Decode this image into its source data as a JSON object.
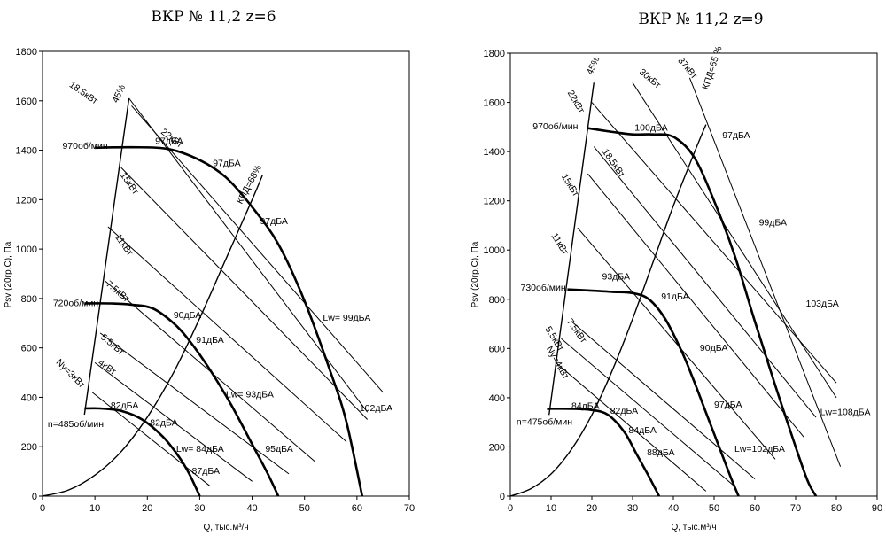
{
  "chart_data": [
    {
      "type": "line",
      "title": "ВКР № 11,2 z=6",
      "xlabel": "Q, тыс.м³/ч",
      "ylabel": "Psv (20гр.С), Па",
      "xlim": [
        0,
        70
      ],
      "ylim": [
        0,
        1800
      ],
      "xticks": [
        "0",
        "10",
        "20",
        "30",
        "40",
        "50",
        "60",
        "70"
      ],
      "yticks": [
        "0",
        "200",
        "400",
        "600",
        "800",
        "1000",
        "1200",
        "1400",
        "1600",
        "1800"
      ],
      "grid": false,
      "series": [
        {
          "name": "970об/мин",
          "kind": "pressure",
          "x": [
            10,
            17,
            24,
            30,
            35,
            40,
            45,
            50,
            55,
            58,
            61
          ],
          "y": [
            1410,
            1412,
            1405,
            1360,
            1290,
            1170,
            1020,
            790,
            500,
            300,
            0
          ]
        },
        {
          "name": "720об/мин",
          "kind": "pressure",
          "x": [
            8,
            13,
            17,
            21,
            25,
            28,
            32,
            36,
            40,
            43,
            45
          ],
          "y": [
            780,
            780,
            775,
            760,
            700,
            630,
            510,
            370,
            210,
            90,
            0
          ]
        },
        {
          "name": "n=485об/мин",
          "kind": "pressure",
          "x": [
            8,
            11,
            15,
            19,
            23,
            26,
            28,
            30
          ],
          "y": [
            355,
            355,
            345,
            310,
            240,
            160,
            90,
            0
          ]
        },
        {
          "name": "КПД=68%",
          "kind": "efficiency",
          "x": [
            0,
            5,
            10,
            15,
            20,
            25,
            30,
            35,
            40,
            42
          ],
          "y": [
            0,
            25,
            85,
            180,
            320,
            500,
            720,
            960,
            1200,
            1300
          ]
        },
        {
          "name": "45%",
          "kind": "boundary",
          "x": [
            8,
            16.5
          ],
          "y": [
            330,
            1610
          ]
        },
        {
          "name": "18.5кВт",
          "kind": "power",
          "x": [
            16.5,
            62
          ],
          "y": [
            1610,
            340
          ]
        },
        {
          "name": "22кВт",
          "kind": "power",
          "x": [
            17,
            65
          ],
          "y": [
            1580,
            420
          ]
        },
        {
          "name": "15кВт",
          "kind": "power",
          "x": [
            15,
            62
          ],
          "y": [
            1330,
            310
          ]
        },
        {
          "name": "11кВт",
          "kind": "power",
          "x": [
            12.5,
            58
          ],
          "y": [
            1090,
            220
          ]
        },
        {
          "name": "7.5кВт",
          "kind": "power",
          "x": [
            12,
            52
          ],
          "y": [
            870,
            140
          ]
        },
        {
          "name": "5.5кВт",
          "kind": "power",
          "x": [
            11,
            47
          ],
          "y": [
            660,
            90
          ]
        },
        {
          "name": "4кВт",
          "kind": "power",
          "x": [
            10,
            40
          ],
          "y": [
            540,
            60
          ]
        },
        {
          "name": "Ny=3кВт",
          "kind": "power",
          "x": [
            9.5,
            32
          ],
          "y": [
            420,
            40
          ]
        }
      ],
      "labels": [
        {
          "text": "18.5кВт",
          "x": 5,
          "y": 1660,
          "rotate": 35
        },
        {
          "text": "45%",
          "x": 14.3,
          "y": 1590,
          "rotate": -65
        },
        {
          "text": "22кВт",
          "x": 22.5,
          "y": 1470,
          "rotate": 38
        },
        {
          "text": "970об/мин",
          "x": 3.8,
          "y": 1405,
          "rotate": 0
        },
        {
          "text": "97дБА",
          "x": 21.5,
          "y": 1425,
          "rotate": 0
        },
        {
          "text": "15кВт",
          "x": 14.8,
          "y": 1300,
          "rotate": 55
        },
        {
          "text": "97дБА",
          "x": 32.5,
          "y": 1335,
          "rotate": 0
        },
        {
          "text": "КПД=68%",
          "x": 38,
          "y": 1180,
          "rotate": -62
        },
        {
          "text": "11кВт",
          "x": 13.8,
          "y": 1050,
          "rotate": 55
        },
        {
          "text": "97дБА",
          "x": 41.5,
          "y": 1100,
          "rotate": 0
        },
        {
          "text": "7.5кВт",
          "x": 12,
          "y": 855,
          "rotate": 40
        },
        {
          "text": "720об/мин",
          "x": 2,
          "y": 770,
          "rotate": 0
        },
        {
          "text": "Lw= 99дБА",
          "x": 53.5,
          "y": 710,
          "rotate": 0
        },
        {
          "text": "90дБА",
          "x": 25,
          "y": 720,
          "rotate": 0
        },
        {
          "text": "5.5кВт",
          "x": 11,
          "y": 640,
          "rotate": 40
        },
        {
          "text": "91дБА",
          "x": 29.3,
          "y": 620,
          "rotate": 0
        },
        {
          "text": "4кВт",
          "x": 10.5,
          "y": 535,
          "rotate": 35
        },
        {
          "text": "Ny=3кВт",
          "x": 2.5,
          "y": 540,
          "rotate": 45
        },
        {
          "text": "Lw= 93дБА",
          "x": 35,
          "y": 400,
          "rotate": 0
        },
        {
          "text": "82дБА",
          "x": 13,
          "y": 355,
          "rotate": 0
        },
        {
          "text": "102дБА",
          "x": 60.5,
          "y": 345,
          "rotate": 0
        },
        {
          "text": "n=485об/мин",
          "x": 1,
          "y": 280,
          "rotate": 0
        },
        {
          "text": "82дБА",
          "x": 20.5,
          "y": 285,
          "rotate": 0
        },
        {
          "text": "Lw= 84дБА",
          "x": 25.5,
          "y": 180,
          "rotate": 0
        },
        {
          "text": "95дБА",
          "x": 42.5,
          "y": 180,
          "rotate": 0
        },
        {
          "text": "87дБА",
          "x": 28.5,
          "y": 90,
          "rotate": 0
        }
      ]
    },
    {
      "type": "line",
      "title": "ВКР № 11,2 z=9",
      "xlabel": "Q, тыс.м³/ч",
      "ylabel": "Psv (20гр.С), Па",
      "xlim": [
        0,
        90
      ],
      "ylim": [
        0,
        1800
      ],
      "xticks": [
        "0",
        "10",
        "20",
        "30",
        "40",
        "50",
        "60",
        "70",
        "80",
        "90"
      ],
      "yticks": [
        "0",
        "200",
        "400",
        "600",
        "800",
        "1000",
        "1200",
        "1400",
        "1600",
        "1800"
      ],
      "grid": false,
      "series": [
        {
          "name": "970об/мин",
          "kind": "pressure",
          "x": [
            19,
            25,
            30,
            35,
            40,
            45,
            50,
            55,
            60,
            65,
            70,
            73,
            75
          ],
          "y": [
            1495,
            1480,
            1470,
            1470,
            1460,
            1380,
            1200,
            980,
            710,
            450,
            200,
            60,
            0
          ]
        },
        {
          "name": "730об/мин",
          "kind": "pressure",
          "x": [
            14,
            20,
            25,
            30,
            34,
            38,
            42,
            45,
            48,
            51,
            54,
            56
          ],
          "y": [
            840,
            835,
            830,
            825,
            800,
            720,
            590,
            470,
            340,
            210,
            80,
            0
          ]
        },
        {
          "name": "n=475об/мин",
          "kind": "pressure",
          "x": [
            9,
            15,
            20,
            24,
            28,
            31,
            34,
            36.5
          ],
          "y": [
            355,
            355,
            350,
            330,
            260,
            170,
            80,
            0
          ]
        },
        {
          "name": "КПД=65%",
          "kind": "efficiency",
          "x": [
            0,
            5,
            10,
            15,
            20,
            25,
            30,
            35,
            40,
            45,
            48
          ],
          "y": [
            0,
            30,
            90,
            190,
            330,
            510,
            720,
            950,
            1180,
            1390,
            1510
          ]
        },
        {
          "name": "45%",
          "kind": "boundary",
          "x": [
            9.5,
            20.5
          ],
          "y": [
            330,
            1680
          ]
        },
        {
          "name": "22кВт",
          "kind": "power",
          "x": [
            20,
            80
          ],
          "y": [
            1600,
            460
          ]
        },
        {
          "name": "30кВт",
          "kind": "power",
          "x": [
            30,
            80
          ],
          "y": [
            1680,
            400
          ]
        },
        {
          "name": "37кВт",
          "kind": "power",
          "x": [
            44,
            81
          ],
          "y": [
            1700,
            120
          ]
        },
        {
          "name": "18.5кВт",
          "kind": "power",
          "x": [
            20.5,
            75
          ],
          "y": [
            1420,
            320
          ]
        },
        {
          "name": "15кВт",
          "kind": "power",
          "x": [
            19,
            72
          ],
          "y": [
            1310,
            240
          ]
        },
        {
          "name": "11кВт",
          "kind": "power",
          "x": [
            16.5,
            65
          ],
          "y": [
            1090,
            150
          ]
        },
        {
          "name": "7.5кВт",
          "kind": "power",
          "x": [
            15,
            60
          ],
          "y": [
            710,
            70
          ]
        },
        {
          "name": "5.5кВт",
          "kind": "power",
          "x": [
            12.5,
            55
          ],
          "y": [
            640,
            40
          ]
        },
        {
          "name": "Ny=4кВт",
          "kind": "power",
          "x": [
            11,
            48
          ],
          "y": [
            545,
            20
          ]
        }
      ],
      "labels": [
        {
          "text": "45%",
          "x": 20,
          "y": 1710,
          "rotate": -65
        },
        {
          "text": "22кВт",
          "x": 14,
          "y": 1640,
          "rotate": 60
        },
        {
          "text": "30кВт",
          "x": 31.5,
          "y": 1720,
          "rotate": 40
        },
        {
          "text": "37кВт",
          "x": 41,
          "y": 1770,
          "rotate": 50
        },
        {
          "text": "КПД=65 %",
          "x": 48.5,
          "y": 1650,
          "rotate": -72
        },
        {
          "text": "970об/мин",
          "x": 5.5,
          "y": 1490,
          "rotate": 0
        },
        {
          "text": "100дБА",
          "x": 30.5,
          "y": 1485,
          "rotate": 0
        },
        {
          "text": "97дБА",
          "x": 52,
          "y": 1455,
          "rotate": 0
        },
        {
          "text": "18.5кВт",
          "x": 22.5,
          "y": 1400,
          "rotate": 55
        },
        {
          "text": "15кВт",
          "x": 12.5,
          "y": 1300,
          "rotate": 58
        },
        {
          "text": "99дБА",
          "x": 61,
          "y": 1100,
          "rotate": 0
        },
        {
          "text": "11кВт",
          "x": 10,
          "y": 1060,
          "rotate": 58
        },
        {
          "text": "730об/мин",
          "x": 2.5,
          "y": 835,
          "rotate": 0
        },
        {
          "text": "93дБА",
          "x": 22.5,
          "y": 880,
          "rotate": 0
        },
        {
          "text": "91дБА",
          "x": 37,
          "y": 800,
          "rotate": 0
        },
        {
          "text": "103дБА",
          "x": 72.5,
          "y": 770,
          "rotate": 0
        },
        {
          "text": "7.5кВт",
          "x": 13.8,
          "y": 710,
          "rotate": 55
        },
        {
          "text": "5.5кВт",
          "x": 8.5,
          "y": 680,
          "rotate": 58
        },
        {
          "text": "Ny=4кВт",
          "x": 8.8,
          "y": 600,
          "rotate": 60
        },
        {
          "text": "90дБА",
          "x": 46.5,
          "y": 590,
          "rotate": 0
        },
        {
          "text": "84дБА",
          "x": 15,
          "y": 355,
          "rotate": 0
        },
        {
          "text": "82дБА",
          "x": 24.5,
          "y": 335,
          "rotate": 0
        },
        {
          "text": "97дБА",
          "x": 50,
          "y": 360,
          "rotate": 0
        },
        {
          "text": "Lw=108дБА",
          "x": 76,
          "y": 330,
          "rotate": 0
        },
        {
          "text": "n=475об/мин",
          "x": 1.5,
          "y": 290,
          "rotate": 0
        },
        {
          "text": "84дБА",
          "x": 29,
          "y": 255,
          "rotate": 0
        },
        {
          "text": "Lw=102дБА",
          "x": 55,
          "y": 180,
          "rotate": 0
        },
        {
          "text": "88дБА",
          "x": 33.5,
          "y": 165,
          "rotate": 0
        }
      ]
    }
  ]
}
